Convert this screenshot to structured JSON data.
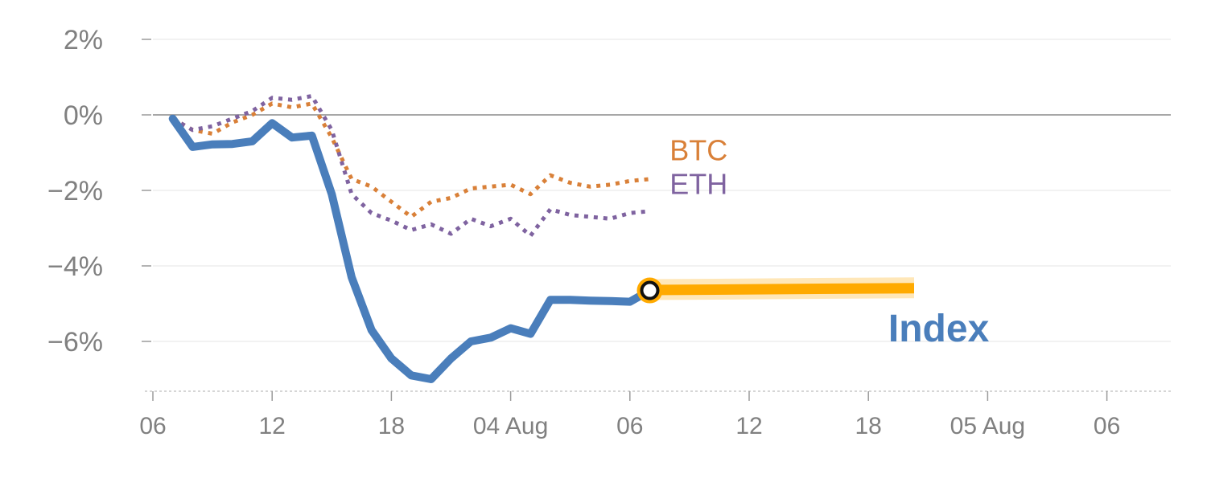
{
  "chart_data": {
    "type": "line",
    "title": "",
    "xlabel": "",
    "ylabel": "",
    "ylim": [
      -7.4,
      2.4
    ],
    "x_range_hours": [
      0,
      51.5
    ],
    "grid": true,
    "y_ticks": [
      {
        "value": 2,
        "label": "2%"
      },
      {
        "value": 0,
        "label": "0%"
      },
      {
        "value": -2,
        "label": "−2%"
      },
      {
        "value": -4,
        "label": "−4%"
      },
      {
        "value": -6,
        "label": "−6%"
      }
    ],
    "x_ticks": [
      {
        "value": 0,
        "label": "06"
      },
      {
        "value": 6,
        "label": "12"
      },
      {
        "value": 12,
        "label": "18"
      },
      {
        "value": 18,
        "label": "04 Aug"
      },
      {
        "value": 24,
        "label": "06"
      },
      {
        "value": 30,
        "label": "12"
      },
      {
        "value": 36,
        "label": "18"
      },
      {
        "value": 42,
        "label": "05 Aug"
      },
      {
        "value": 48,
        "label": "06"
      }
    ],
    "series": [
      {
        "name": "BTC",
        "color": "#d98038",
        "style": "dotted",
        "points": [
          [
            1,
            -0.1
          ],
          [
            2,
            -0.4
          ],
          [
            3,
            -0.5
          ],
          [
            4,
            -0.2
          ],
          [
            5,
            0.0
          ],
          [
            6,
            0.3
          ],
          [
            7,
            0.2
          ],
          [
            8,
            0.3
          ],
          [
            9,
            -0.6
          ],
          [
            10,
            -1.7
          ],
          [
            11,
            -1.9
          ],
          [
            12,
            -2.3
          ],
          [
            13,
            -2.7
          ],
          [
            14,
            -2.3
          ],
          [
            15,
            -2.2
          ],
          [
            16,
            -1.95
          ],
          [
            17,
            -1.9
          ],
          [
            18,
            -1.85
          ],
          [
            19,
            -2.1
          ],
          [
            20,
            -1.6
          ],
          [
            21,
            -1.8
          ],
          [
            22,
            -1.9
          ],
          [
            23,
            -1.85
          ],
          [
            24,
            -1.75
          ],
          [
            25,
            -1.7
          ]
        ]
      },
      {
        "name": "ETH",
        "color": "#7f63a0",
        "style": "dotted",
        "points": [
          [
            1,
            -0.1
          ],
          [
            2,
            -0.4
          ],
          [
            3,
            -0.3
          ],
          [
            4,
            -0.1
          ],
          [
            5,
            0.1
          ],
          [
            6,
            0.45
          ],
          [
            7,
            0.4
          ],
          [
            8,
            0.5
          ],
          [
            9,
            -0.4
          ],
          [
            10,
            -2.1
          ],
          [
            11,
            -2.6
          ],
          [
            12,
            -2.8
          ],
          [
            13,
            -3.05
          ],
          [
            14,
            -2.9
          ],
          [
            15,
            -3.15
          ],
          [
            16,
            -2.75
          ],
          [
            17,
            -2.95
          ],
          [
            18,
            -2.75
          ],
          [
            19,
            -3.2
          ],
          [
            20,
            -2.5
          ],
          [
            21,
            -2.65
          ],
          [
            22,
            -2.7
          ],
          [
            23,
            -2.75
          ],
          [
            24,
            -2.6
          ],
          [
            25,
            -2.55
          ]
        ]
      },
      {
        "name": "Index",
        "color": "#4a7ebb",
        "style": "solid",
        "points": [
          [
            1,
            -0.1
          ],
          [
            2,
            -0.85
          ],
          [
            3,
            -0.78
          ],
          [
            4,
            -0.77
          ],
          [
            5,
            -0.7
          ],
          [
            6,
            -0.22
          ],
          [
            7,
            -0.6
          ],
          [
            8,
            -0.55
          ],
          [
            9,
            -2.1
          ],
          [
            10,
            -4.3
          ],
          [
            11,
            -5.7
          ],
          [
            12,
            -6.45
          ],
          [
            13,
            -6.9
          ],
          [
            14,
            -7.0
          ],
          [
            15,
            -6.45
          ],
          [
            16,
            -6.0
          ],
          [
            17,
            -5.9
          ],
          [
            18,
            -5.65
          ],
          [
            19,
            -5.8
          ],
          [
            20,
            -4.9
          ],
          [
            21,
            -4.9
          ],
          [
            22,
            -4.92
          ],
          [
            23,
            -4.93
          ],
          [
            24,
            -4.95
          ],
          [
            25,
            -4.65
          ]
        ]
      }
    ],
    "forecast": {
      "color": "#ffaa00",
      "start": [
        25,
        -4.65
      ],
      "end": [
        38.3,
        -4.6
      ]
    },
    "current_marker": {
      "x": 25,
      "y": -4.65
    },
    "labels": [
      {
        "series": "BTC",
        "text": "BTC",
        "x": 26,
        "y": -1.2,
        "color": "#d98038",
        "size": "small"
      },
      {
        "series": "ETH",
        "text": "ETH",
        "x": 26,
        "y": -2.1,
        "color": "#7f63a0",
        "size": "small"
      },
      {
        "series": "Index",
        "text": "Index",
        "x": 37,
        "y": -6.0,
        "color": "#4a7ebb",
        "size": "big"
      }
    ]
  }
}
